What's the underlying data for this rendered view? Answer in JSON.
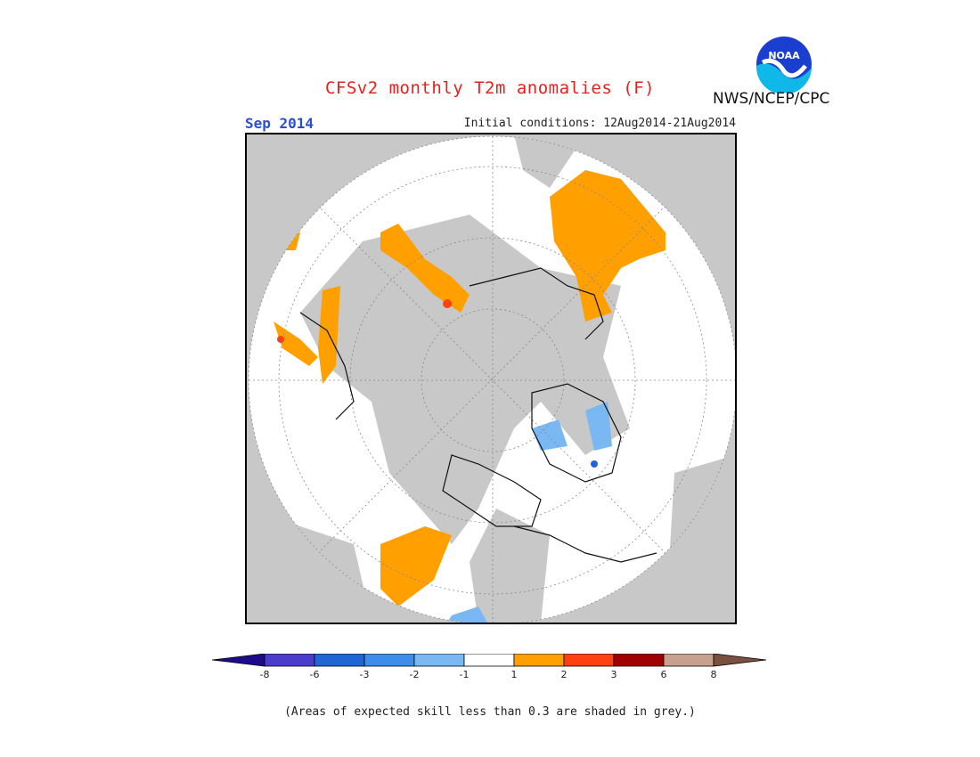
{
  "header": {
    "title": "CFSv2 monthly T2m anomalies (F)",
    "month": "Sep 2014",
    "initial_conditions": "Initial conditions: 12Aug2014-21Aug2014",
    "agency": "NWS/NCEP/CPC",
    "logo_text": "NOAA"
  },
  "legend": {
    "colors": [
      "#1c0c8c",
      "#4a3ccc",
      "#1f66d4",
      "#3d8eea",
      "#7ab8f4",
      "#ffffff",
      "#ffa000",
      "#ff4010",
      "#a00000",
      "#c8a090",
      "#7a5040"
    ],
    "ticks": [
      "-8",
      "-6",
      "-3",
      "-2",
      "-1",
      "1",
      "2",
      "3",
      "6",
      "8"
    ]
  },
  "colors": {
    "skill_grey": "#c8c8c8",
    "land_white": "#ffffff",
    "warm_orange": "#ffa000",
    "cool_blue": "#7ab8f4",
    "title_red": "#e8201a",
    "month_blue": "#2a4fd6"
  },
  "footnote": "(Areas of expected skill less than 0.3 are shaded in grey.)"
}
